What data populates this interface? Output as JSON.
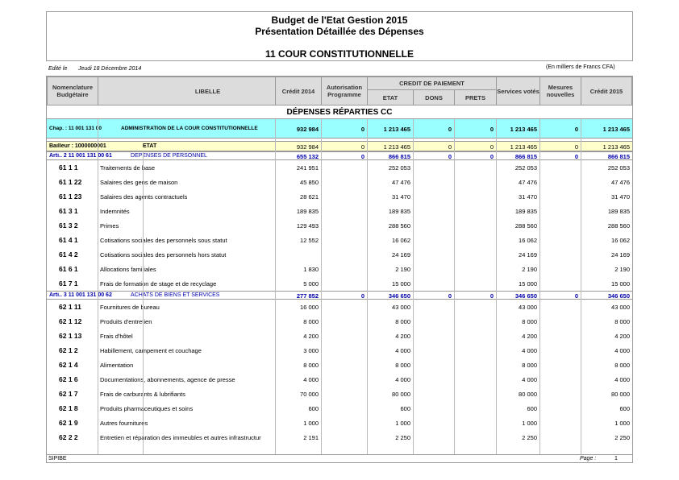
{
  "header": {
    "title1": "Budget de l'Etat  Gestion  2015",
    "title2": "Présentation Détaillée des Dépenses",
    "title3": "11   COUR CONSTITUTIONNELLE",
    "edited_label": "Edité le",
    "edited_date": "Jeudi 18 Décembre 2014",
    "units": "(En milliers de Francs CFA)"
  },
  "columns": {
    "nomenclature": "Nomenclature Budgétaire",
    "libelle": "LIBELLE",
    "credit2014": "Crédit 2014",
    "autorisation": "Autorisation Programme",
    "credit_paiement": "CREDIT DE PAIEMENT",
    "etat": "ETAT",
    "dons": "DONS",
    "prets": "PRETS",
    "services": "Services votés",
    "mesures": "Mesures nouvelles",
    "credit2015": "Crédit 2015"
  },
  "section_title": "DÉPENSES RÉPARTIES CC",
  "chap": {
    "label": "Chap. :  11 001 131 00",
    "libelle": "ADMINISTRATION DE LA COUR CONSTITUTIONNELLE",
    "credit2014": "932 984",
    "autorisation": "0",
    "etat": "1 213 465",
    "dons": "0",
    "prets": "0",
    "services": "1 213 465",
    "mesures": "0",
    "credit2015": "1 213 465"
  },
  "bailleur": {
    "label": "Bailleur : 1000000001",
    "libelle": "ETAT",
    "credit2014": "932 984",
    "autorisation": "0",
    "etat": "1 213 465",
    "dons": "0",
    "prets": "0",
    "services": "1 213 465",
    "mesures": "0",
    "credit2015": "1 213 465"
  },
  "rows": [
    {
      "type": "article",
      "code": "Arti..  2 11 001 131 00 61",
      "libelle": "DEPENSES DE PERSONNEL",
      "credit2014": "655 132",
      "autorisation": "0",
      "etat": "866 815",
      "dons": "0",
      "prets": "0",
      "services": "866 815",
      "mesures": "0",
      "credit2015": "866 815"
    },
    {
      "type": "line",
      "code": "61  1  1",
      "libelle": "Traitements de base",
      "credit2014": "241 951",
      "etat": "252 053",
      "services": "252 053",
      "credit2015": "252 053"
    },
    {
      "type": "line",
      "code": "61  1  22",
      "libelle": "Salaires des gens de maison",
      "credit2014": "45 850",
      "etat": "47 476",
      "services": "47 476",
      "credit2015": "47 476"
    },
    {
      "type": "line",
      "code": "61  1  23",
      "libelle": "Salaires des agents contractuels",
      "credit2014": "28 621",
      "etat": "31 470",
      "services": "31 470",
      "credit2015": "31 470"
    },
    {
      "type": "line",
      "code": "61  3  1",
      "libelle": "Indemnités",
      "credit2014": "189 835",
      "etat": "189 835",
      "services": "189 835",
      "credit2015": "189 835"
    },
    {
      "type": "line",
      "code": "61  3  2",
      "libelle": "Primes",
      "credit2014": "129 493",
      "etat": "288 560",
      "services": "288 560",
      "credit2015": "288 560"
    },
    {
      "type": "line",
      "code": "61  4  1",
      "libelle": "Cotisations sociales des personnels sous statut",
      "credit2014": "12 552",
      "etat": "16 062",
      "services": "16 062",
      "credit2015": "16 062"
    },
    {
      "type": "line",
      "code": "61  4  2",
      "libelle": "Cotisations sociales des personnels hors statut",
      "credit2014": "",
      "etat": "24 169",
      "services": "24 169",
      "credit2015": "24 169"
    },
    {
      "type": "line",
      "code": "61  6  1",
      "libelle": "Allocations familiales",
      "credit2014": "1 830",
      "etat": "2 190",
      "services": "2 190",
      "credit2015": "2 190"
    },
    {
      "type": "line",
      "code": "61  7  1",
      "libelle": "Frais de formation de stage et de recyclage",
      "credit2014": "5 000",
      "etat": "15 000",
      "services": "15 000",
      "credit2015": "15 000"
    },
    {
      "type": "article",
      "code": "Arti..  3 11 001 131 00 62",
      "libelle": "ACHATS DE BIENS ET SERVICES",
      "credit2014": "277 852",
      "autorisation": "0",
      "etat": "346 650",
      "dons": "0",
      "prets": "0",
      "services": "346 650",
      "mesures": "0",
      "credit2015": "346 650"
    },
    {
      "type": "line",
      "code": "62  1  11",
      "libelle": "Fournitures de bureau",
      "credit2014": "16 000",
      "etat": "43 000",
      "services": "43 000",
      "credit2015": "43 000"
    },
    {
      "type": "line",
      "code": "62  1  12",
      "libelle": "Produits d'entretien",
      "credit2014": "8 000",
      "etat": "8 000",
      "services": "8 000",
      "credit2015": "8 000"
    },
    {
      "type": "line",
      "code": "62  1  13",
      "libelle": "Frais d'hôtel",
      "credit2014": "4 200",
      "etat": "4 200",
      "services": "4 200",
      "credit2015": "4 200"
    },
    {
      "type": "line",
      "code": "62  1  2",
      "libelle": "Habillement, campement et couchage",
      "credit2014": "3 000",
      "etat": "4 000",
      "services": "4 000",
      "credit2015": "4 000"
    },
    {
      "type": "line",
      "code": "62  1  4",
      "libelle": "Alimentation",
      "credit2014": "8 000",
      "etat": "8 000",
      "services": "8 000",
      "credit2015": "8 000"
    },
    {
      "type": "line",
      "code": "62  1  6",
      "libelle": "Documentations, abonnements, agence de presse",
      "credit2014": "4 000",
      "etat": "4 000",
      "services": "4 000",
      "credit2015": "4 000"
    },
    {
      "type": "line",
      "code": "62  1  7",
      "libelle": "Frais de carburants & lubrifiants",
      "credit2014": "70 000",
      "etat": "80 000",
      "services": "80 000",
      "credit2015": "80 000"
    },
    {
      "type": "line",
      "code": "62  1  8",
      "libelle": "Produits pharmaceutiques et soins",
      "credit2014": "600",
      "etat": "600",
      "services": "600",
      "credit2015": "600"
    },
    {
      "type": "line",
      "code": "62  1  9",
      "libelle": "Autres fournitures",
      "credit2014": "1 000",
      "etat": "1 000",
      "services": "1 000",
      "credit2015": "1 000"
    },
    {
      "type": "line",
      "code": "62  2  2",
      "libelle": "Entretien et réparation des immeubles et autres infrastructur",
      "credit2014": "2 191",
      "etat": "2 250",
      "services": "2 250",
      "credit2015": "2 250"
    }
  ],
  "footer": {
    "left": "SIPIBE",
    "page_label": "Page :",
    "page_number": "1"
  },
  "colors": {
    "chap_bg": "#99ffff",
    "bailleur_bg": "#ffffcc",
    "article_text": "#0000aa",
    "header_bg": "#dcdcdc"
  }
}
